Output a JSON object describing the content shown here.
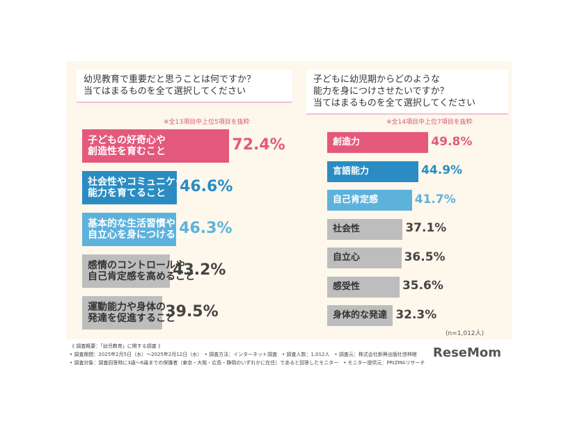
{
  "chart_data": [
    {
      "type": "bar",
      "orientation": "horizontal",
      "title": "幼児教育で重要だと思うことは何ですか？\n当てはまるものを全て選択してください",
      "note": "※全13項目中上位5項目を抜粋",
      "categories": [
        "子どもの好奇心や\n創造性を育むこと",
        "社会性やコミュニケーション\n能力を育てること",
        "基本的な生活習慣や\n自立心を身につけること",
        "感情のコントロールや\n自己肯定感を高めること",
        "運動能力や身体の\n発達を促進すること"
      ],
      "values": [
        72.4,
        46.6,
        46.3,
        43.2,
        39.5
      ],
      "value_labels": [
        "72.4%",
        "46.6%",
        "46.3%",
        "43.2%",
        "39.5%"
      ],
      "colors": [
        "#e4587c",
        "#2a8cc2",
        "#5db2dc",
        "#bdbdbd",
        "#bdbdbd"
      ]
    },
    {
      "type": "bar",
      "orientation": "horizontal",
      "title": "子どもに幼児期からどのような\n能力を身につけさせたいですか？\n当てはまるものを全て選択してください",
      "note": "※全14項目中上位7項目を抜粋",
      "categories": [
        "創造力",
        "言語能力",
        "自己肯定感",
        "社会性",
        "自立心",
        "感受性",
        "身体的な発達"
      ],
      "values": [
        49.8,
        44.9,
        41.7,
        37.1,
        36.5,
        35.6,
        32.3
      ],
      "value_labels": [
        "49.8%",
        "44.9%",
        "41.7%",
        "37.1%",
        "36.5%",
        "35.6%",
        "32.3%"
      ],
      "colors": [
        "#e4587c",
        "#2a8cc2",
        "#5db2dc",
        "#bdbdbd",
        "#bdbdbd",
        "#bdbdbd",
        "#bdbdbd"
      ],
      "sample_size": "(n=1,012人)"
    }
  ],
  "footer": [
    "《 調査概要：「幼児教育」に関する調査 》",
    "• 調査期間：2025年2月5日（水）〜2025年2月12日（水）　• 調査方法：インターネット調査　• 調査人数：1,012人　• 調査元：株式会社新興出版社啓林館",
    "• 調査対象：調査回答時に3歳〜6歳までの保護者（東京・大阪・広島・静岡のいずれかに在住）であると回答したモニター　• モニター提供元：PRIZMAリサーチ"
  ],
  "logo": "ReseMom"
}
